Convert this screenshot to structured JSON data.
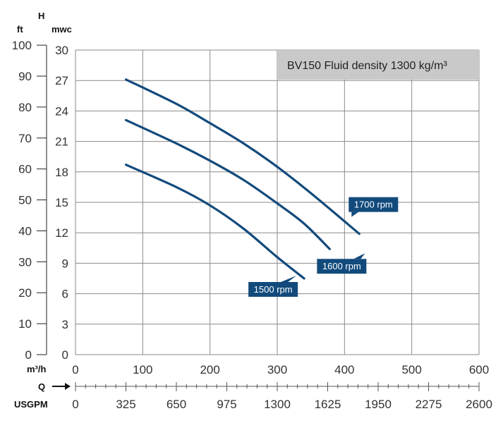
{
  "chart_data": {
    "type": "line",
    "title": "BV150 Fluid density 1300 kg/m³",
    "axis_titles": {
      "head": "H",
      "ft_unit": "ft",
      "mwc_unit": "mwc",
      "flow_m3h": "m³/h",
      "flow_q": "Q",
      "flow_usgpm": "USGPM"
    },
    "y_mwc_ticks": [
      0,
      3,
      6,
      9,
      12,
      15,
      18,
      21,
      24,
      27,
      30
    ],
    "y_ft_ticks": [
      0,
      10,
      20,
      30,
      40,
      50,
      60,
      70,
      80,
      90,
      100
    ],
    "x_m3h_ticks": [
      0,
      100,
      200,
      300,
      400,
      500,
      600
    ],
    "x_usgpm_ticks": [
      0,
      325,
      650,
      975,
      1300,
      1625,
      1950,
      2275,
      2600
    ],
    "xlim_m3h": [
      0,
      600
    ],
    "ylim_mwc": [
      0,
      30
    ],
    "grid": true,
    "series": [
      {
        "name": "1700 rpm",
        "color": "#124a7c",
        "x": [
          75,
          150,
          200,
          250,
          300,
          350,
          422
        ],
        "y": [
          27.1,
          24.7,
          22.8,
          20.8,
          18.5,
          15.9,
          11.9
        ]
      },
      {
        "name": "1600 rpm",
        "color": "#124a7c",
        "x": [
          75,
          150,
          200,
          250,
          300,
          340,
          378
        ],
        "y": [
          23.1,
          20.8,
          19.1,
          17.2,
          14.9,
          12.9,
          10.4
        ]
      },
      {
        "name": "1500 rpm",
        "color": "#124a7c",
        "x": [
          75,
          150,
          200,
          250,
          300,
          340
        ],
        "y": [
          18.7,
          16.5,
          14.7,
          12.4,
          9.6,
          7.5
        ]
      }
    ]
  }
}
